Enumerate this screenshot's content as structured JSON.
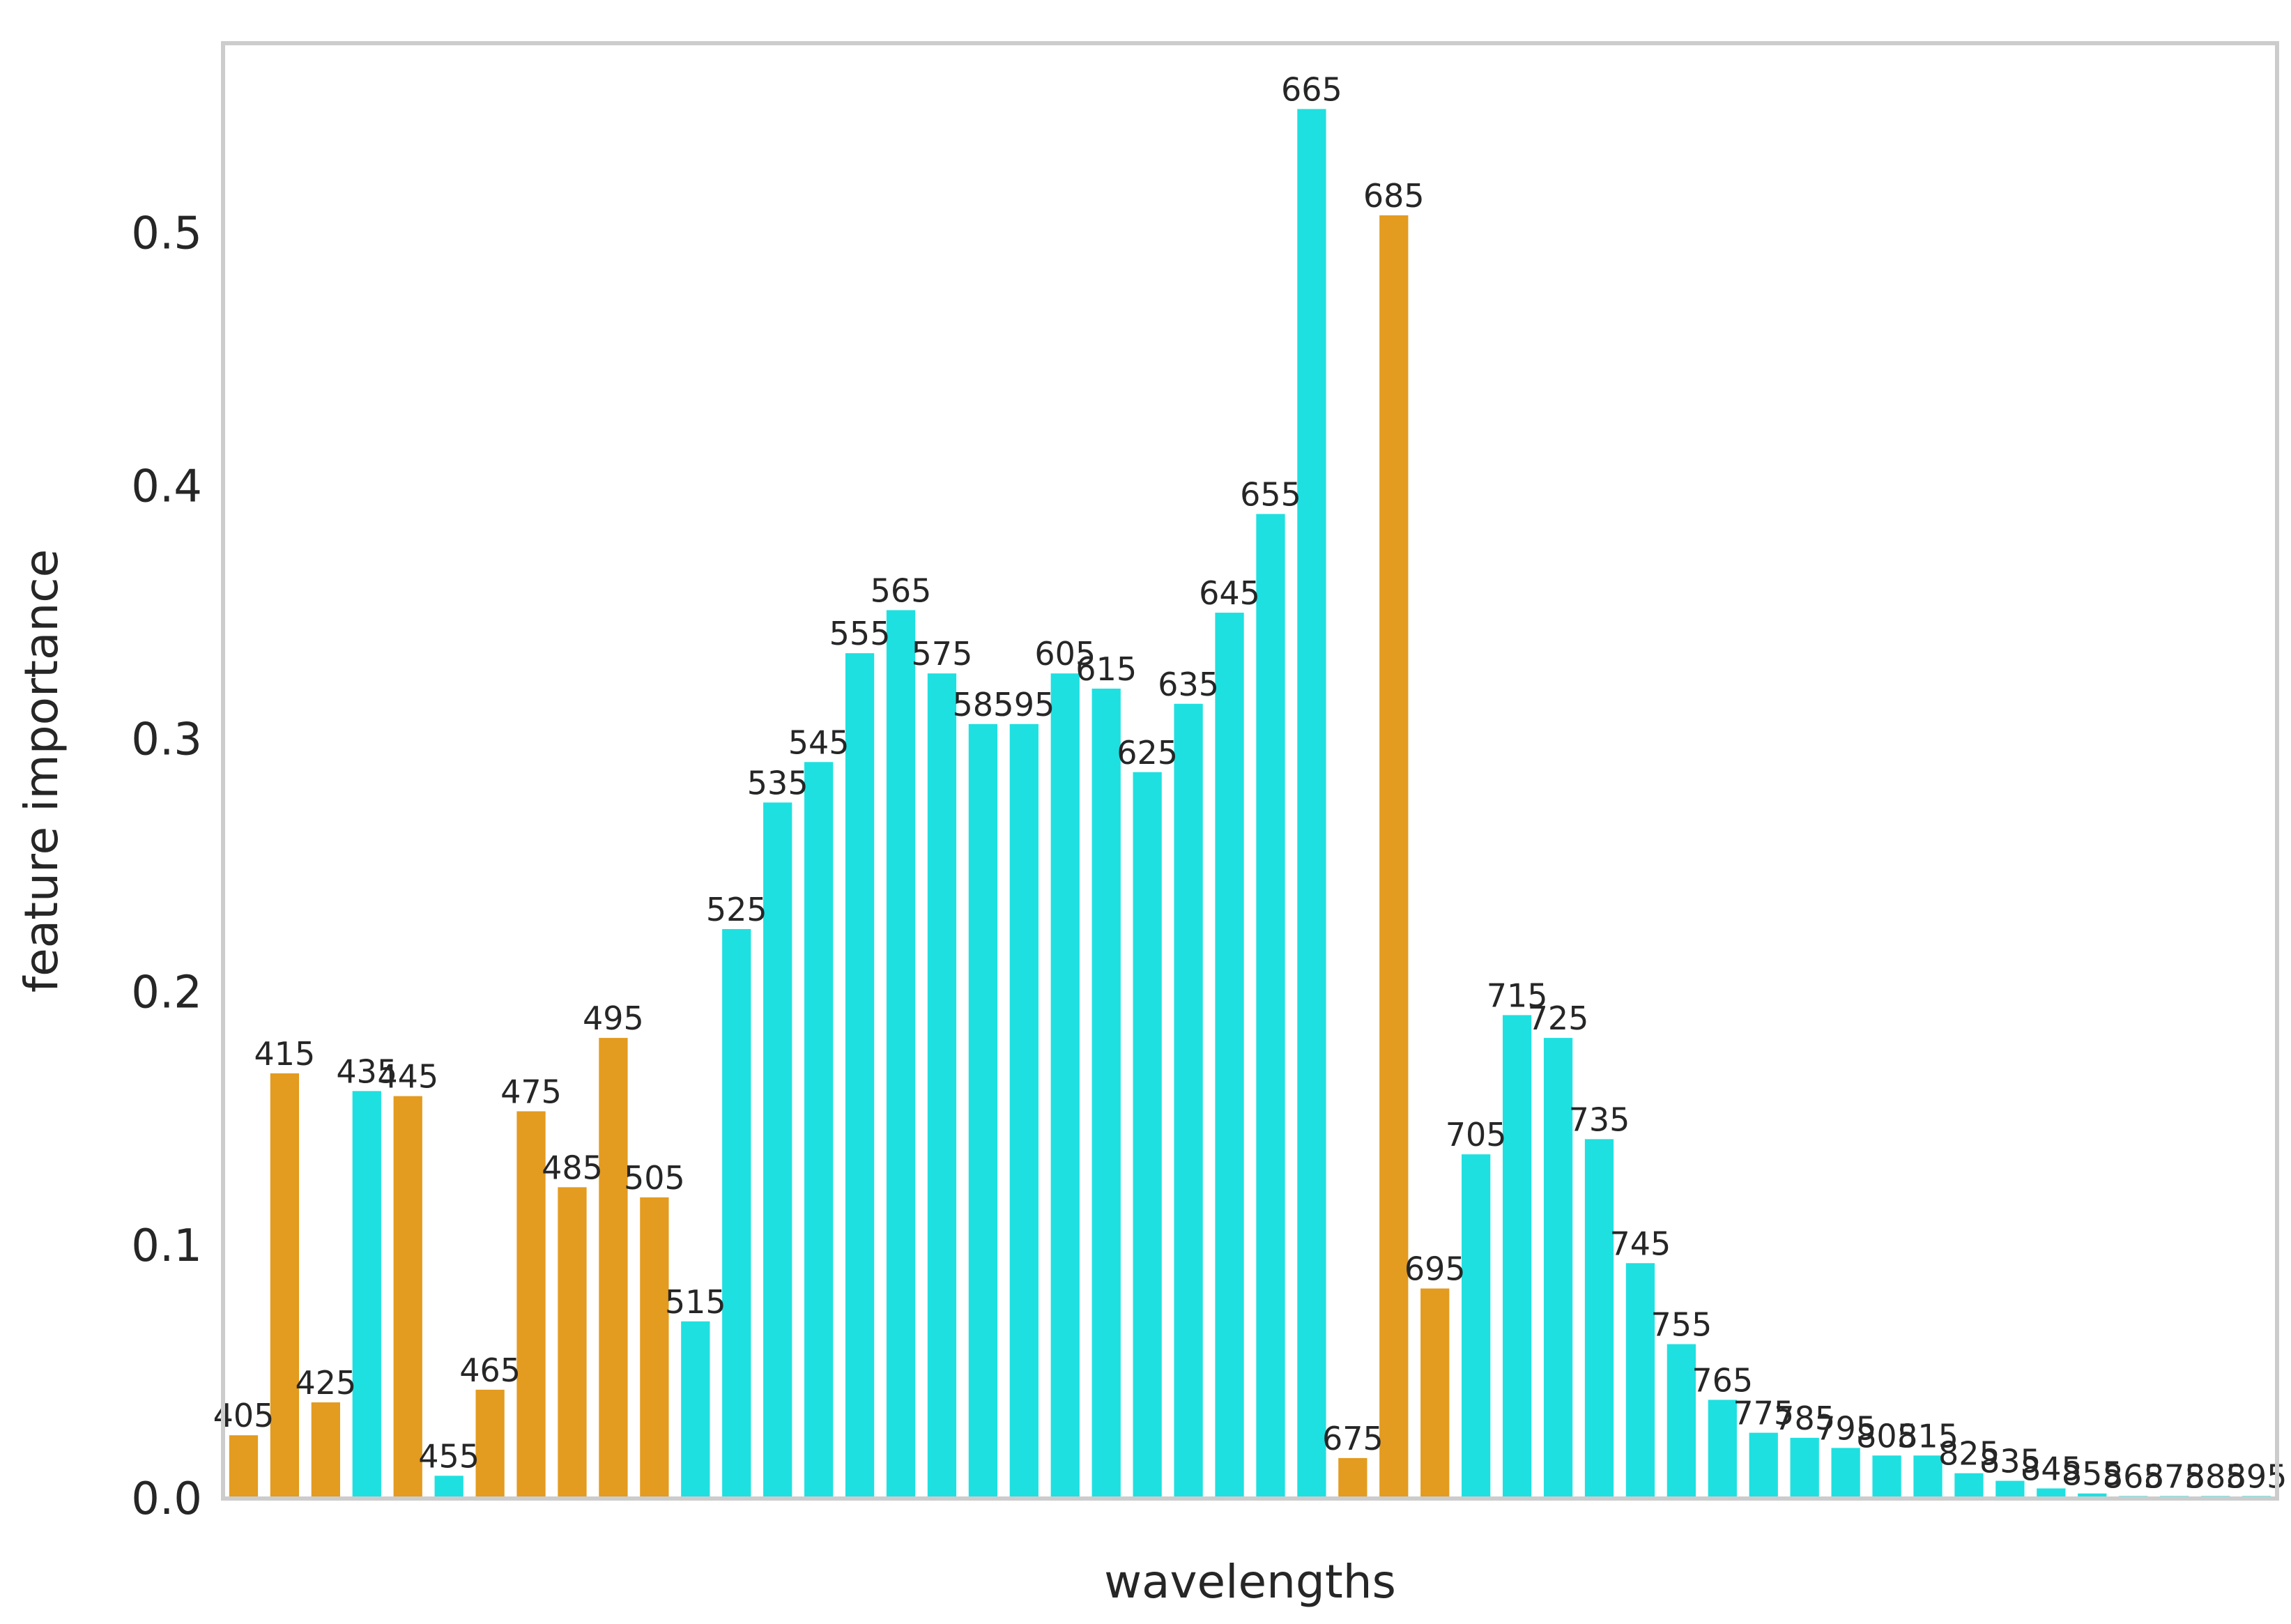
{
  "chart_data": {
    "type": "bar",
    "xlabel": "wavelengths",
    "ylabel": "feature importance",
    "ylim": [
      0,
      0.575
    ],
    "yticks": [
      0.0,
      0.1,
      0.2,
      0.3,
      0.4,
      0.5
    ],
    "ytick_labels": [
      "0.0",
      "0.1",
      "0.2",
      "0.3",
      "0.4",
      "0.5"
    ],
    "grid": false,
    "legend": "none",
    "colors": {
      "highlight": "#E39B20",
      "default": "#1FE0E0",
      "frame": "#CCCCCC"
    },
    "categories": [
      "405",
      "415",
      "425",
      "435",
      "445",
      "455",
      "465",
      "475",
      "485",
      "495",
      "505",
      "515",
      "525",
      "535",
      "545",
      "555",
      "565",
      "575",
      "585",
      "595",
      "605",
      "615",
      "625",
      "635",
      "645",
      "655",
      "665",
      "675",
      "685",
      "695",
      "705",
      "715",
      "725",
      "735",
      "745",
      "755",
      "765",
      "775",
      "785",
      "795",
      "805",
      "815",
      "825",
      "835",
      "845",
      "855",
      "865",
      "875",
      "885",
      "895"
    ],
    "values": [
      0.025,
      0.168,
      0.038,
      0.161,
      0.159,
      0.009,
      0.043,
      0.153,
      0.123,
      0.182,
      0.119,
      0.07,
      0.225,
      0.275,
      0.291,
      0.334,
      0.351,
      0.326,
      0.306,
      0.306,
      0.326,
      0.32,
      0.287,
      0.314,
      0.35,
      0.389,
      0.549,
      0.016,
      0.507,
      0.083,
      0.136,
      0.191,
      0.182,
      0.142,
      0.093,
      0.061,
      0.039,
      0.026,
      0.024,
      0.02,
      0.017,
      0.017,
      0.01,
      0.007,
      0.004,
      0.002,
      0.001,
      0.001,
      0.001,
      0.001
    ],
    "highlight": [
      true,
      true,
      true,
      false,
      true,
      false,
      true,
      true,
      true,
      true,
      true,
      false,
      false,
      false,
      false,
      false,
      false,
      false,
      false,
      false,
      false,
      false,
      false,
      false,
      false,
      false,
      false,
      true,
      true,
      true,
      false,
      false,
      false,
      false,
      false,
      false,
      false,
      false,
      false,
      false,
      false,
      false,
      false,
      false,
      false,
      false,
      false,
      false,
      false,
      false
    ]
  }
}
